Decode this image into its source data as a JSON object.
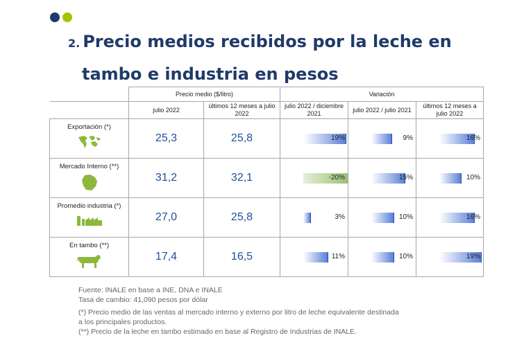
{
  "brand": {
    "dot_colors": [
      "#1f3a68",
      "#a4c400"
    ]
  },
  "title": {
    "number": "2.",
    "line1": "Precio medios recibidos por la leche en",
    "line2": "tambo e industria en pesos"
  },
  "table": {
    "group_headers": {
      "price": "Precio medio ($/litro)",
      "variation": "Variación"
    },
    "sub_headers": [
      "julio 2022",
      "últimos 12 meses a julio 2022",
      "julio 2022 / diciembre 2021",
      "julio 2022 / julio 2021",
      "últimos 12 meses a julio 2022"
    ],
    "rows": [
      {
        "label": "Exportación (*)",
        "icon": "world-map-icon",
        "price_jul": "25,3",
        "price_12m": "25,8",
        "variations": [
          {
            "text": "19%",
            "value": 19
          },
          {
            "text": "9%",
            "value": 9
          },
          {
            "text": "16%",
            "value": 16
          }
        ]
      },
      {
        "label": "Mercado Interno (**)",
        "icon": "uruguay-map-icon",
        "price_jul": "31,2",
        "price_12m": "32,1",
        "variations": [
          {
            "text": "-20%",
            "value": -20
          },
          {
            "text": "15%",
            "value": 15
          },
          {
            "text": "10%",
            "value": 10
          }
        ]
      },
      {
        "label": "Promedio industria (*)",
        "icon": "factory-icon",
        "price_jul": "27,0",
        "price_12m": "25,8",
        "variations": [
          {
            "text": "3%",
            "value": 3
          },
          {
            "text": "10%",
            "value": 10
          },
          {
            "text": "16%",
            "value": 16
          }
        ]
      },
      {
        "label": "En tambo (**)",
        "icon": "cow-icon",
        "price_jul": "17,4",
        "price_12m": "16,5",
        "variations": [
          {
            "text": "11%",
            "value": 11
          },
          {
            "text": "10%",
            "value": 10
          },
          {
            "text": "19%",
            "value": 19
          }
        ]
      }
    ]
  },
  "notes": [
    "Fuente: INALE en base a INE, DNA e INALE",
    "Tasa de cambio: 41,090 pesos por dólar",
    "(*) Precio medio de las ventas al mercado interno y externo por litro de leche equivalente destinada",
    "a los principales productos.",
    "(**) Precio de la leche en tambo estimado en base al Registro de Industrias de INALE."
  ]
}
